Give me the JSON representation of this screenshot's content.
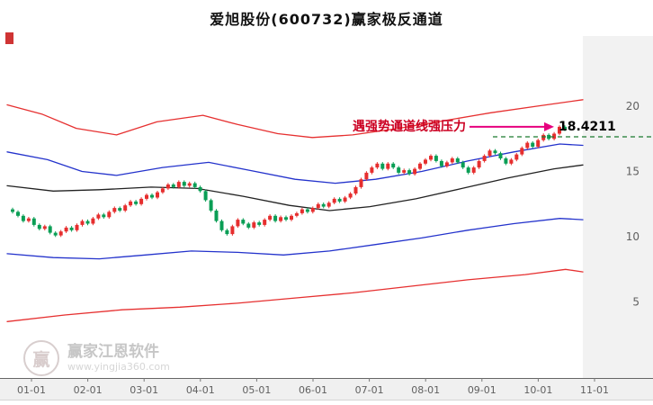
{
  "chart_data": {
    "type": "candlestick",
    "title": "爱旭股份(600732)赢家极反通道",
    "x_labels": [
      "01-01",
      "02-01",
      "03-01",
      "04-01",
      "05-01",
      "06-01",
      "07-01",
      "08-01",
      "09-01",
      "10-01",
      "11-01"
    ],
    "y_ticks": [
      20,
      15,
      10,
      5
    ],
    "ylim": [
      0,
      25
    ],
    "grid": false,
    "candles": {
      "first_open": 12.1,
      "wick": 0.12,
      "up_color": "#e62e2e",
      "down_color": "#0a9e55",
      "closes": [
        11.9,
        11.6,
        11.2,
        11.4,
        10.9,
        10.6,
        10.8,
        10.3,
        10.1,
        10.4,
        10.7,
        10.5,
        10.9,
        11.2,
        11.0,
        11.4,
        11.7,
        11.5,
        11.9,
        12.2,
        12.0,
        12.4,
        12.7,
        12.5,
        12.9,
        13.2,
        13.0,
        13.4,
        13.7,
        14.0,
        13.8,
        14.2,
        13.9,
        14.1,
        13.8,
        13.5,
        12.8,
        12.0,
        11.2,
        10.5,
        10.2,
        10.8,
        11.3,
        11.0,
        10.7,
        11.1,
        10.9,
        11.3,
        11.6,
        11.2,
        11.5,
        11.3,
        11.6,
        11.8,
        12.1,
        11.9,
        12.2,
        12.5,
        12.3,
        12.6,
        12.9,
        12.7,
        13.0,
        13.3,
        13.8,
        14.4,
        14.9,
        15.3,
        15.6,
        15.2,
        15.6,
        15.3,
        14.9,
        15.1,
        14.8,
        15.2,
        15.6,
        15.9,
        16.2,
        15.8,
        15.4,
        15.7,
        16.0,
        15.7,
        15.3,
        14.9,
        15.3,
        15.8,
        16.2,
        16.6,
        16.4,
        16.0,
        15.6,
        15.9,
        16.3,
        16.8,
        17.2,
        16.9,
        17.4,
        17.8,
        17.5,
        17.9,
        18.42,
        18.2
      ]
    },
    "channel_lines": [
      {
        "name": "outer-upper-red",
        "color": "#e63030",
        "points": [
          [
            0,
            20.1
          ],
          [
            0.06,
            19.4
          ],
          [
            0.12,
            18.3
          ],
          [
            0.19,
            17.8
          ],
          [
            0.26,
            18.8
          ],
          [
            0.34,
            19.3
          ],
          [
            0.4,
            18.6
          ],
          [
            0.47,
            17.9
          ],
          [
            0.53,
            17.6
          ],
          [
            0.6,
            17.8
          ],
          [
            0.68,
            18.3
          ],
          [
            0.76,
            18.9
          ],
          [
            0.84,
            19.5
          ],
          [
            0.92,
            20.0
          ],
          [
            1,
            20.5
          ]
        ]
      },
      {
        "name": "inner-upper-blue",
        "color": "#2433cc",
        "points": [
          [
            0,
            16.5
          ],
          [
            0.07,
            15.9
          ],
          [
            0.13,
            15.0
          ],
          [
            0.19,
            14.7
          ],
          [
            0.27,
            15.3
          ],
          [
            0.35,
            15.7
          ],
          [
            0.42,
            15.1
          ],
          [
            0.5,
            14.4
          ],
          [
            0.57,
            14.1
          ],
          [
            0.64,
            14.4
          ],
          [
            0.72,
            15.0
          ],
          [
            0.8,
            15.8
          ],
          [
            0.88,
            16.5
          ],
          [
            0.96,
            17.1
          ],
          [
            1,
            17.0
          ]
        ]
      },
      {
        "name": "middle-black",
        "color": "#222222",
        "points": [
          [
            0,
            13.9
          ],
          [
            0.08,
            13.5
          ],
          [
            0.16,
            13.6
          ],
          [
            0.25,
            13.8
          ],
          [
            0.33,
            13.7
          ],
          [
            0.41,
            13.1
          ],
          [
            0.49,
            12.4
          ],
          [
            0.56,
            12.0
          ],
          [
            0.63,
            12.3
          ],
          [
            0.71,
            12.9
          ],
          [
            0.79,
            13.7
          ],
          [
            0.87,
            14.5
          ],
          [
            0.95,
            15.2
          ],
          [
            1,
            15.5
          ]
        ]
      },
      {
        "name": "inner-lower-blue",
        "color": "#2433cc",
        "points": [
          [
            0,
            8.7
          ],
          [
            0.08,
            8.4
          ],
          [
            0.16,
            8.3
          ],
          [
            0.24,
            8.6
          ],
          [
            0.32,
            8.9
          ],
          [
            0.4,
            8.8
          ],
          [
            0.48,
            8.6
          ],
          [
            0.56,
            8.9
          ],
          [
            0.64,
            9.4
          ],
          [
            0.72,
            9.9
          ],
          [
            0.8,
            10.5
          ],
          [
            0.88,
            11.0
          ],
          [
            0.96,
            11.4
          ],
          [
            1,
            11.3
          ]
        ]
      },
      {
        "name": "outer-lower-red",
        "color": "#e63030",
        "points": [
          [
            0,
            3.5
          ],
          [
            0.1,
            4.0
          ],
          [
            0.2,
            4.4
          ],
          [
            0.3,
            4.6
          ],
          [
            0.4,
            4.9
          ],
          [
            0.5,
            5.3
          ],
          [
            0.6,
            5.7
          ],
          [
            0.7,
            6.2
          ],
          [
            0.8,
            6.7
          ],
          [
            0.9,
            7.1
          ],
          [
            0.97,
            7.5
          ],
          [
            1,
            7.3
          ]
        ]
      }
    ]
  },
  "annotation": {
    "text": "遇强势通道线强压力",
    "price": "18.4211",
    "value": 18.4211,
    "arrow_color": "#e6007e",
    "dash_color": "#1a7a2e",
    "text_color": "#cc0022"
  },
  "watermark": {
    "logo_char": "赢",
    "name": "赢家江恩软件",
    "url": "www.yingjia360.com"
  }
}
